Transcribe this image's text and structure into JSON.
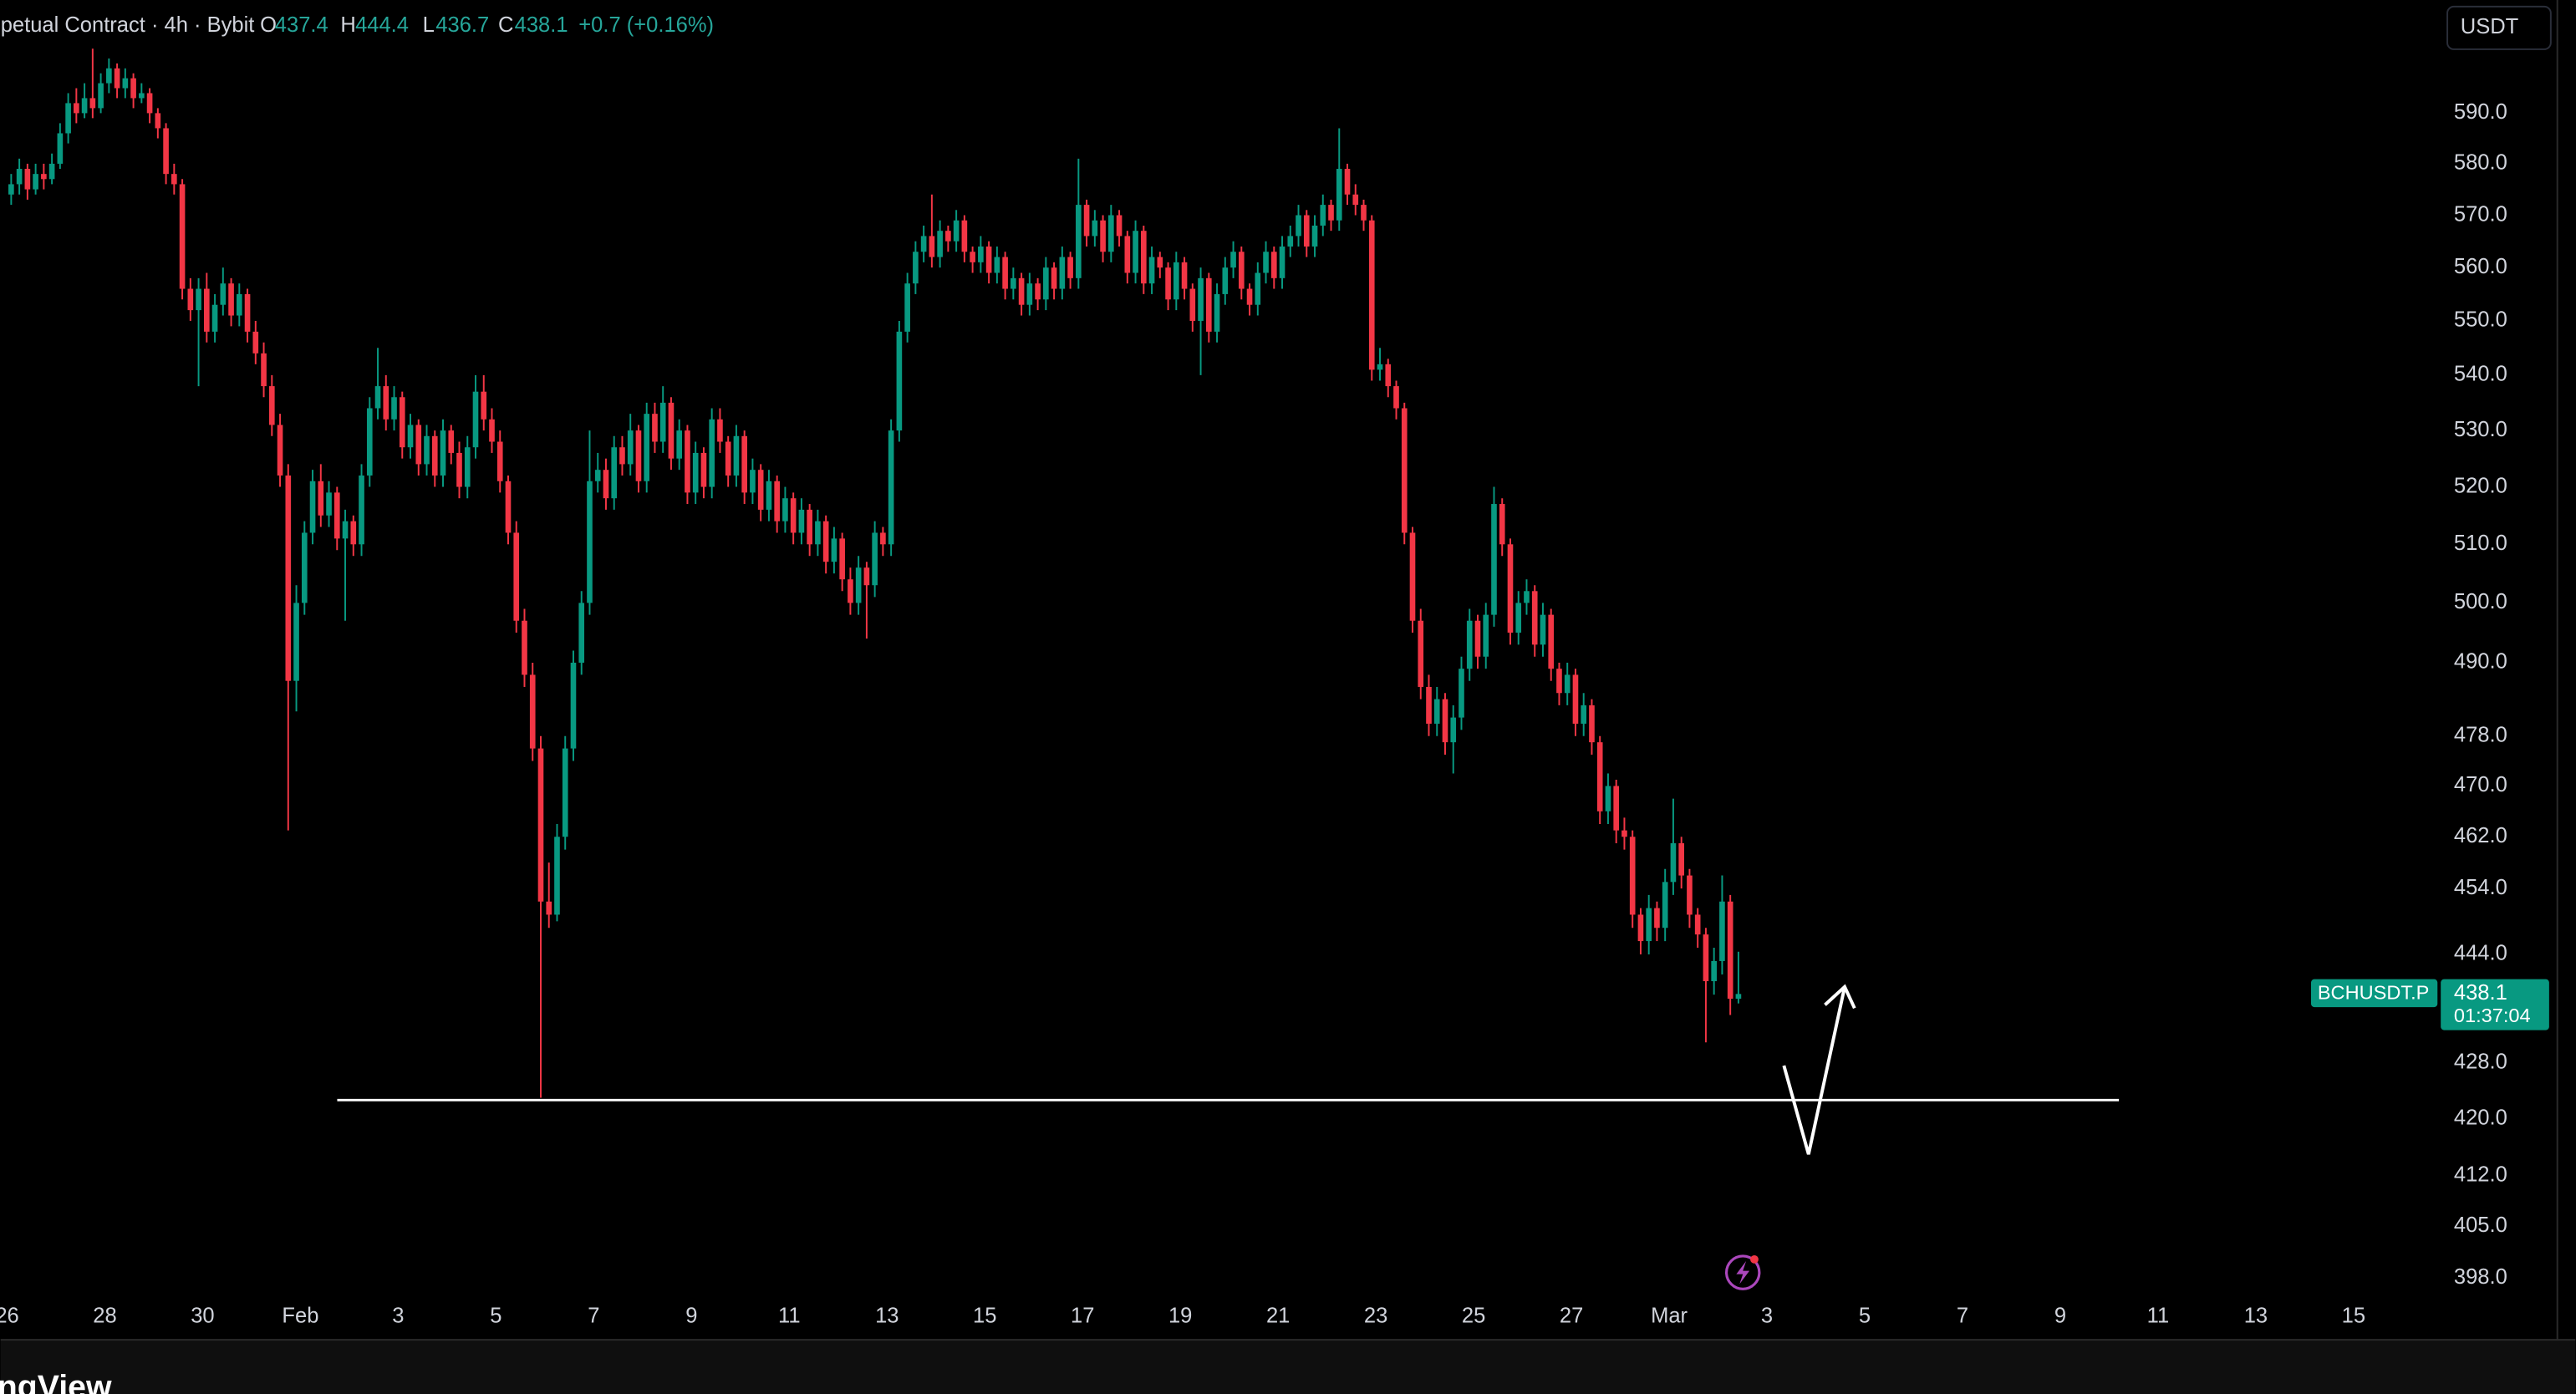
{
  "chart_data": {
    "type": "candlestick",
    "legend": {
      "symbol": "petual Contract · 4h · Bybit",
      "labels": [
        "O",
        "H",
        "L",
        "C"
      ],
      "change": "+0.7 (+0.16%)"
    },
    "currency": "USDT",
    "symbol_tag": "BCHUSDT.P",
    "countdown": "01:37:04",
    "footer": "ngView",
    "up_color": "#089981",
    "down_color": "#f23645",
    "log_scale": true,
    "grid": false,
    "ylim": [
      395,
      613
    ],
    "yticks": [
      {
        "value": 590,
        "label": "590.0"
      },
      {
        "value": 580,
        "label": "580.0"
      },
      {
        "value": 570,
        "label": "570.0"
      },
      {
        "value": 560,
        "label": "560.0"
      },
      {
        "value": 550,
        "label": "550.0"
      },
      {
        "value": 540,
        "label": "540.0"
      },
      {
        "value": 530,
        "label": "530.0"
      },
      {
        "value": 520,
        "label": "520.0"
      },
      {
        "value": 510,
        "label": "510.0"
      },
      {
        "value": 500,
        "label": "500.0"
      },
      {
        "value": 490,
        "label": "490.0"
      },
      {
        "value": 478,
        "label": "478.0"
      },
      {
        "value": 470,
        "label": "470.0"
      },
      {
        "value": 462,
        "label": "462.0"
      },
      {
        "value": 454,
        "label": "454.0"
      },
      {
        "value": 444,
        "label": "444.0"
      },
      {
        "value": 428,
        "label": "428.0"
      },
      {
        "value": 420,
        "label": "420.0"
      },
      {
        "value": 412,
        "label": "412.0"
      },
      {
        "value": 405,
        "label": "405.0"
      },
      {
        "value": 398,
        "label": "398.0"
      }
    ],
    "xlim": [
      -0.8,
      298.5
    ],
    "xticks": [
      {
        "value": 0,
        "label": "26"
      },
      {
        "value": 12,
        "label": "28"
      },
      {
        "value": 24,
        "label": "30"
      },
      {
        "value": 36,
        "label": "Feb"
      },
      {
        "value": 48,
        "label": "3"
      },
      {
        "value": 60,
        "label": "5"
      },
      {
        "value": 72,
        "label": "7"
      },
      {
        "value": 84,
        "label": "9"
      },
      {
        "value": 96,
        "label": "11"
      },
      {
        "value": 108,
        "label": "13"
      },
      {
        "value": 120,
        "label": "15"
      },
      {
        "value": 132,
        "label": "17"
      },
      {
        "value": 144,
        "label": "19"
      },
      {
        "value": 156,
        "label": "21"
      },
      {
        "value": 168,
        "label": "23"
      },
      {
        "value": 180,
        "label": "25"
      },
      {
        "value": 192,
        "label": "27"
      },
      {
        "value": 204,
        "label": "Mar"
      },
      {
        "value": 216,
        "label": "3"
      },
      {
        "value": 228,
        "label": "5"
      },
      {
        "value": 240,
        "label": "7"
      },
      {
        "value": 252,
        "label": "9"
      },
      {
        "value": 264,
        "label": "11"
      },
      {
        "value": 276,
        "label": "13"
      },
      {
        "value": 288,
        "label": "15"
      }
    ],
    "candles": [
      [
        574,
        578,
        572,
        576
      ],
      [
        576,
        581,
        574,
        579
      ],
      [
        579,
        580,
        573,
        575
      ],
      [
        575,
        580,
        574,
        578
      ],
      [
        578,
        580,
        575,
        577
      ],
      [
        577,
        582,
        576,
        580
      ],
      [
        580,
        588,
        579,
        586
      ],
      [
        586,
        594,
        584,
        592
      ],
      [
        592,
        595,
        588,
        590
      ],
      [
        590,
        596,
        589,
        593
      ],
      [
        593,
        603,
        589,
        591
      ],
      [
        591,
        598,
        590,
        596
      ],
      [
        596,
        601,
        594,
        599
      ],
      [
        599,
        600,
        593,
        595
      ],
      [
        595,
        599,
        593,
        597
      ],
      [
        597,
        598,
        591,
        593
      ],
      [
        593,
        596,
        592,
        594
      ],
      [
        594,
        595,
        588,
        590
      ],
      [
        590,
        591,
        585,
        587
      ],
      [
        587,
        588,
        576,
        578
      ],
      [
        578,
        580,
        574,
        576
      ],
      [
        576,
        577,
        554,
        556
      ],
      [
        556,
        558,
        550,
        552
      ],
      [
        552,
        558,
        538,
        556
      ],
      [
        556,
        559,
        546,
        548
      ],
      [
        548,
        555,
        546,
        553
      ],
      [
        553,
        560,
        551,
        557
      ],
      [
        557,
        558,
        549,
        551
      ],
      [
        551,
        557,
        549,
        555
      ],
      [
        555,
        556,
        546,
        548
      ],
      [
        548,
        550,
        542,
        544
      ],
      [
        544,
        546,
        536,
        538
      ],
      [
        538,
        540,
        529,
        531
      ],
      [
        531,
        533,
        520,
        522
      ],
      [
        522,
        524,
        463,
        487
      ],
      [
        487,
        503,
        482,
        500
      ],
      [
        500,
        514,
        498,
        512
      ],
      [
        512,
        523,
        510,
        521
      ],
      [
        521,
        524,
        513,
        515
      ],
      [
        515,
        521,
        513,
        519
      ],
      [
        519,
        520,
        509,
        511
      ],
      [
        511,
        516,
        497,
        514
      ],
      [
        514,
        515,
        508,
        510
      ],
      [
        510,
        524,
        508,
        522
      ],
      [
        522,
        536,
        520,
        534
      ],
      [
        534,
        545,
        532,
        538
      ],
      [
        538,
        540,
        530,
        532
      ],
      [
        532,
        538,
        530,
        536
      ],
      [
        536,
        537,
        525,
        527
      ],
      [
        527,
        533,
        525,
        531
      ],
      [
        531,
        532,
        522,
        524
      ],
      [
        524,
        531,
        522,
        529
      ],
      [
        529,
        530,
        520,
        522
      ],
      [
        522,
        532,
        520,
        530
      ],
      [
        530,
        531,
        524,
        526
      ],
      [
        526,
        528,
        518,
        520
      ],
      [
        520,
        529,
        518,
        527
      ],
      [
        527,
        540,
        525,
        537
      ],
      [
        537,
        540,
        530,
        532
      ],
      [
        532,
        534,
        526,
        528
      ],
      [
        528,
        530,
        519,
        521
      ],
      [
        521,
        522,
        510,
        512
      ],
      [
        512,
        514,
        495,
        497
      ],
      [
        497,
        499,
        486,
        488
      ],
      [
        488,
        490,
        474,
        476
      ],
      [
        476,
        478,
        423,
        452
      ],
      [
        452,
        458,
        448,
        450
      ],
      [
        450,
        464,
        449,
        462
      ],
      [
        462,
        478,
        460,
        476
      ],
      [
        476,
        492,
        474,
        490
      ],
      [
        490,
        502,
        488,
        500
      ],
      [
        500,
        530,
        498,
        521
      ],
      [
        521,
        526,
        519,
        523
      ],
      [
        523,
        525,
        516,
        518
      ],
      [
        518,
        529,
        516,
        527
      ],
      [
        527,
        529,
        522,
        524
      ],
      [
        524,
        533,
        522,
        530
      ],
      [
        530,
        531,
        519,
        521
      ],
      [
        521,
        535,
        519,
        533
      ],
      [
        533,
        535,
        526,
        528
      ],
      [
        528,
        538,
        526,
        535
      ],
      [
        535,
        536,
        523,
        525
      ],
      [
        525,
        532,
        523,
        530
      ],
      [
        530,
        531,
        517,
        519
      ],
      [
        519,
        528,
        517,
        526
      ],
      [
        526,
        527,
        518,
        520
      ],
      [
        520,
        534,
        518,
        532
      ],
      [
        532,
        534,
        526,
        528
      ],
      [
        528,
        529,
        520,
        522
      ],
      [
        522,
        531,
        520,
        529
      ],
      [
        529,
        530,
        517,
        519
      ],
      [
        519,
        525,
        517,
        523
      ],
      [
        523,
        524,
        514,
        516
      ],
      [
        516,
        523,
        514,
        521
      ],
      [
        521,
        522,
        512,
        514
      ],
      [
        514,
        520,
        512,
        518
      ],
      [
        518,
        519,
        510,
        512
      ],
      [
        512,
        518,
        510,
        516
      ],
      [
        516,
        517,
        508,
        510
      ],
      [
        510,
        516,
        508,
        514
      ],
      [
        514,
        515,
        505,
        507
      ],
      [
        507,
        513,
        505,
        511
      ],
      [
        511,
        512,
        502,
        504
      ],
      [
        504,
        506,
        498,
        500
      ],
      [
        500,
        508,
        498,
        506
      ],
      [
        506,
        507,
        494,
        503
      ],
      [
        503,
        514,
        501,
        512
      ],
      [
        512,
        513,
        508,
        510
      ],
      [
        510,
        532,
        508,
        530
      ],
      [
        530,
        550,
        528,
        548
      ],
      [
        548,
        559,
        546,
        557
      ],
      [
        557,
        565,
        555,
        563
      ],
      [
        563,
        568,
        561,
        566
      ],
      [
        566,
        574,
        560,
        562
      ],
      [
        562,
        569,
        560,
        567
      ],
      [
        567,
        568,
        563,
        565
      ],
      [
        565,
        571,
        563,
        569
      ],
      [
        569,
        570,
        561,
        563
      ],
      [
        563,
        564,
        559,
        561
      ],
      [
        561,
        566,
        559,
        564
      ],
      [
        564,
        565,
        557,
        559
      ],
      [
        559,
        564,
        557,
        562
      ],
      [
        562,
        563,
        554,
        556
      ],
      [
        556,
        560,
        554,
        558
      ],
      [
        558,
        559,
        551,
        553
      ],
      [
        553,
        559,
        551,
        557
      ],
      [
        557,
        558,
        552,
        554
      ],
      [
        554,
        562,
        552,
        560
      ],
      [
        560,
        561,
        554,
        556
      ],
      [
        556,
        564,
        554,
        562
      ],
      [
        562,
        563,
        556,
        558
      ],
      [
        558,
        581,
        556,
        572
      ],
      [
        572,
        573,
        564,
        566
      ],
      [
        566,
        571,
        564,
        569
      ],
      [
        569,
        570,
        561,
        563
      ],
      [
        563,
        572,
        561,
        570
      ],
      [
        570,
        571,
        564,
        566
      ],
      [
        566,
        567,
        557,
        559
      ],
      [
        559,
        569,
        557,
        567
      ],
      [
        567,
        568,
        555,
        557
      ],
      [
        557,
        564,
        555,
        562
      ],
      [
        562,
        563,
        558,
        560
      ],
      [
        560,
        561,
        552,
        554
      ],
      [
        554,
        563,
        552,
        561
      ],
      [
        561,
        562,
        554,
        556
      ],
      [
        556,
        557,
        548,
        550
      ],
      [
        550,
        560,
        540,
        558
      ],
      [
        558,
        559,
        546,
        548
      ],
      [
        548,
        557,
        546,
        555
      ],
      [
        555,
        562,
        553,
        560
      ],
      [
        560,
        565,
        558,
        563
      ],
      [
        563,
        564,
        554,
        556
      ],
      [
        556,
        557,
        551,
        553
      ],
      [
        553,
        561,
        551,
        559
      ],
      [
        559,
        565,
        557,
        563
      ],
      [
        563,
        564,
        556,
        558
      ],
      [
        558,
        566,
        556,
        564
      ],
      [
        564,
        568,
        562,
        566
      ],
      [
        566,
        572,
        564,
        570
      ],
      [
        570,
        571,
        562,
        564
      ],
      [
        564,
        570,
        562,
        568
      ],
      [
        568,
        574,
        566,
        572
      ],
      [
        572,
        573,
        567,
        569
      ],
      [
        569,
        587,
        567,
        579
      ],
      [
        579,
        580,
        572,
        574
      ],
      [
        574,
        576,
        570,
        572
      ],
      [
        572,
        573,
        567,
        569
      ],
      [
        569,
        570,
        539,
        541
      ],
      [
        541,
        545,
        539,
        542
      ],
      [
        542,
        543,
        536,
        538
      ],
      [
        538,
        539,
        532,
        534
      ],
      [
        534,
        535,
        510,
        512
      ],
      [
        512,
        513,
        495,
        497
      ],
      [
        497,
        499,
        484,
        486
      ],
      [
        486,
        488,
        478,
        480
      ],
      [
        480,
        486,
        478,
        484
      ],
      [
        484,
        485,
        475,
        477
      ],
      [
        477,
        483,
        472,
        481
      ],
      [
        481,
        491,
        479,
        489
      ],
      [
        489,
        499,
        487,
        497
      ],
      [
        497,
        498,
        489,
        491
      ],
      [
        491,
        500,
        489,
        498
      ],
      [
        498,
        520,
        496,
        517
      ],
      [
        517,
        518,
        508,
        510
      ],
      [
        510,
        511,
        493,
        495
      ],
      [
        495,
        502,
        493,
        500
      ],
      [
        500,
        504,
        498,
        502
      ],
      [
        502,
        503,
        491,
        493
      ],
      [
        493,
        500,
        491,
        498
      ],
      [
        498,
        499,
        487,
        489
      ],
      [
        489,
        490,
        483,
        485
      ],
      [
        485,
        490,
        483,
        488
      ],
      [
        488,
        489,
        478,
        480
      ],
      [
        480,
        485,
        478,
        483
      ],
      [
        483,
        484,
        475,
        477
      ],
      [
        477,
        478,
        464,
        466
      ],
      [
        466,
        472,
        464,
        470
      ],
      [
        470,
        471,
        461,
        463
      ],
      [
        463,
        465,
        460,
        462
      ],
      [
        462,
        463,
        448,
        450
      ],
      [
        450,
        451,
        444,
        446
      ],
      [
        446,
        453,
        444,
        451
      ],
      [
        451,
        452,
        446,
        448
      ],
      [
        448,
        457,
        446,
        455
      ],
      [
        455,
        468,
        453,
        461
      ],
      [
        461,
        462,
        454,
        456
      ],
      [
        456,
        457,
        448,
        450
      ],
      [
        450,
        451,
        445,
        447
      ],
      [
        447,
        448,
        431,
        440
      ],
      [
        440,
        445,
        438,
        443
      ],
      [
        443,
        456,
        441,
        452
      ],
      [
        452,
        453,
        435,
        437.4
      ],
      [
        437.4,
        444.4,
        436.7,
        438.1
      ]
    ]
  }
}
